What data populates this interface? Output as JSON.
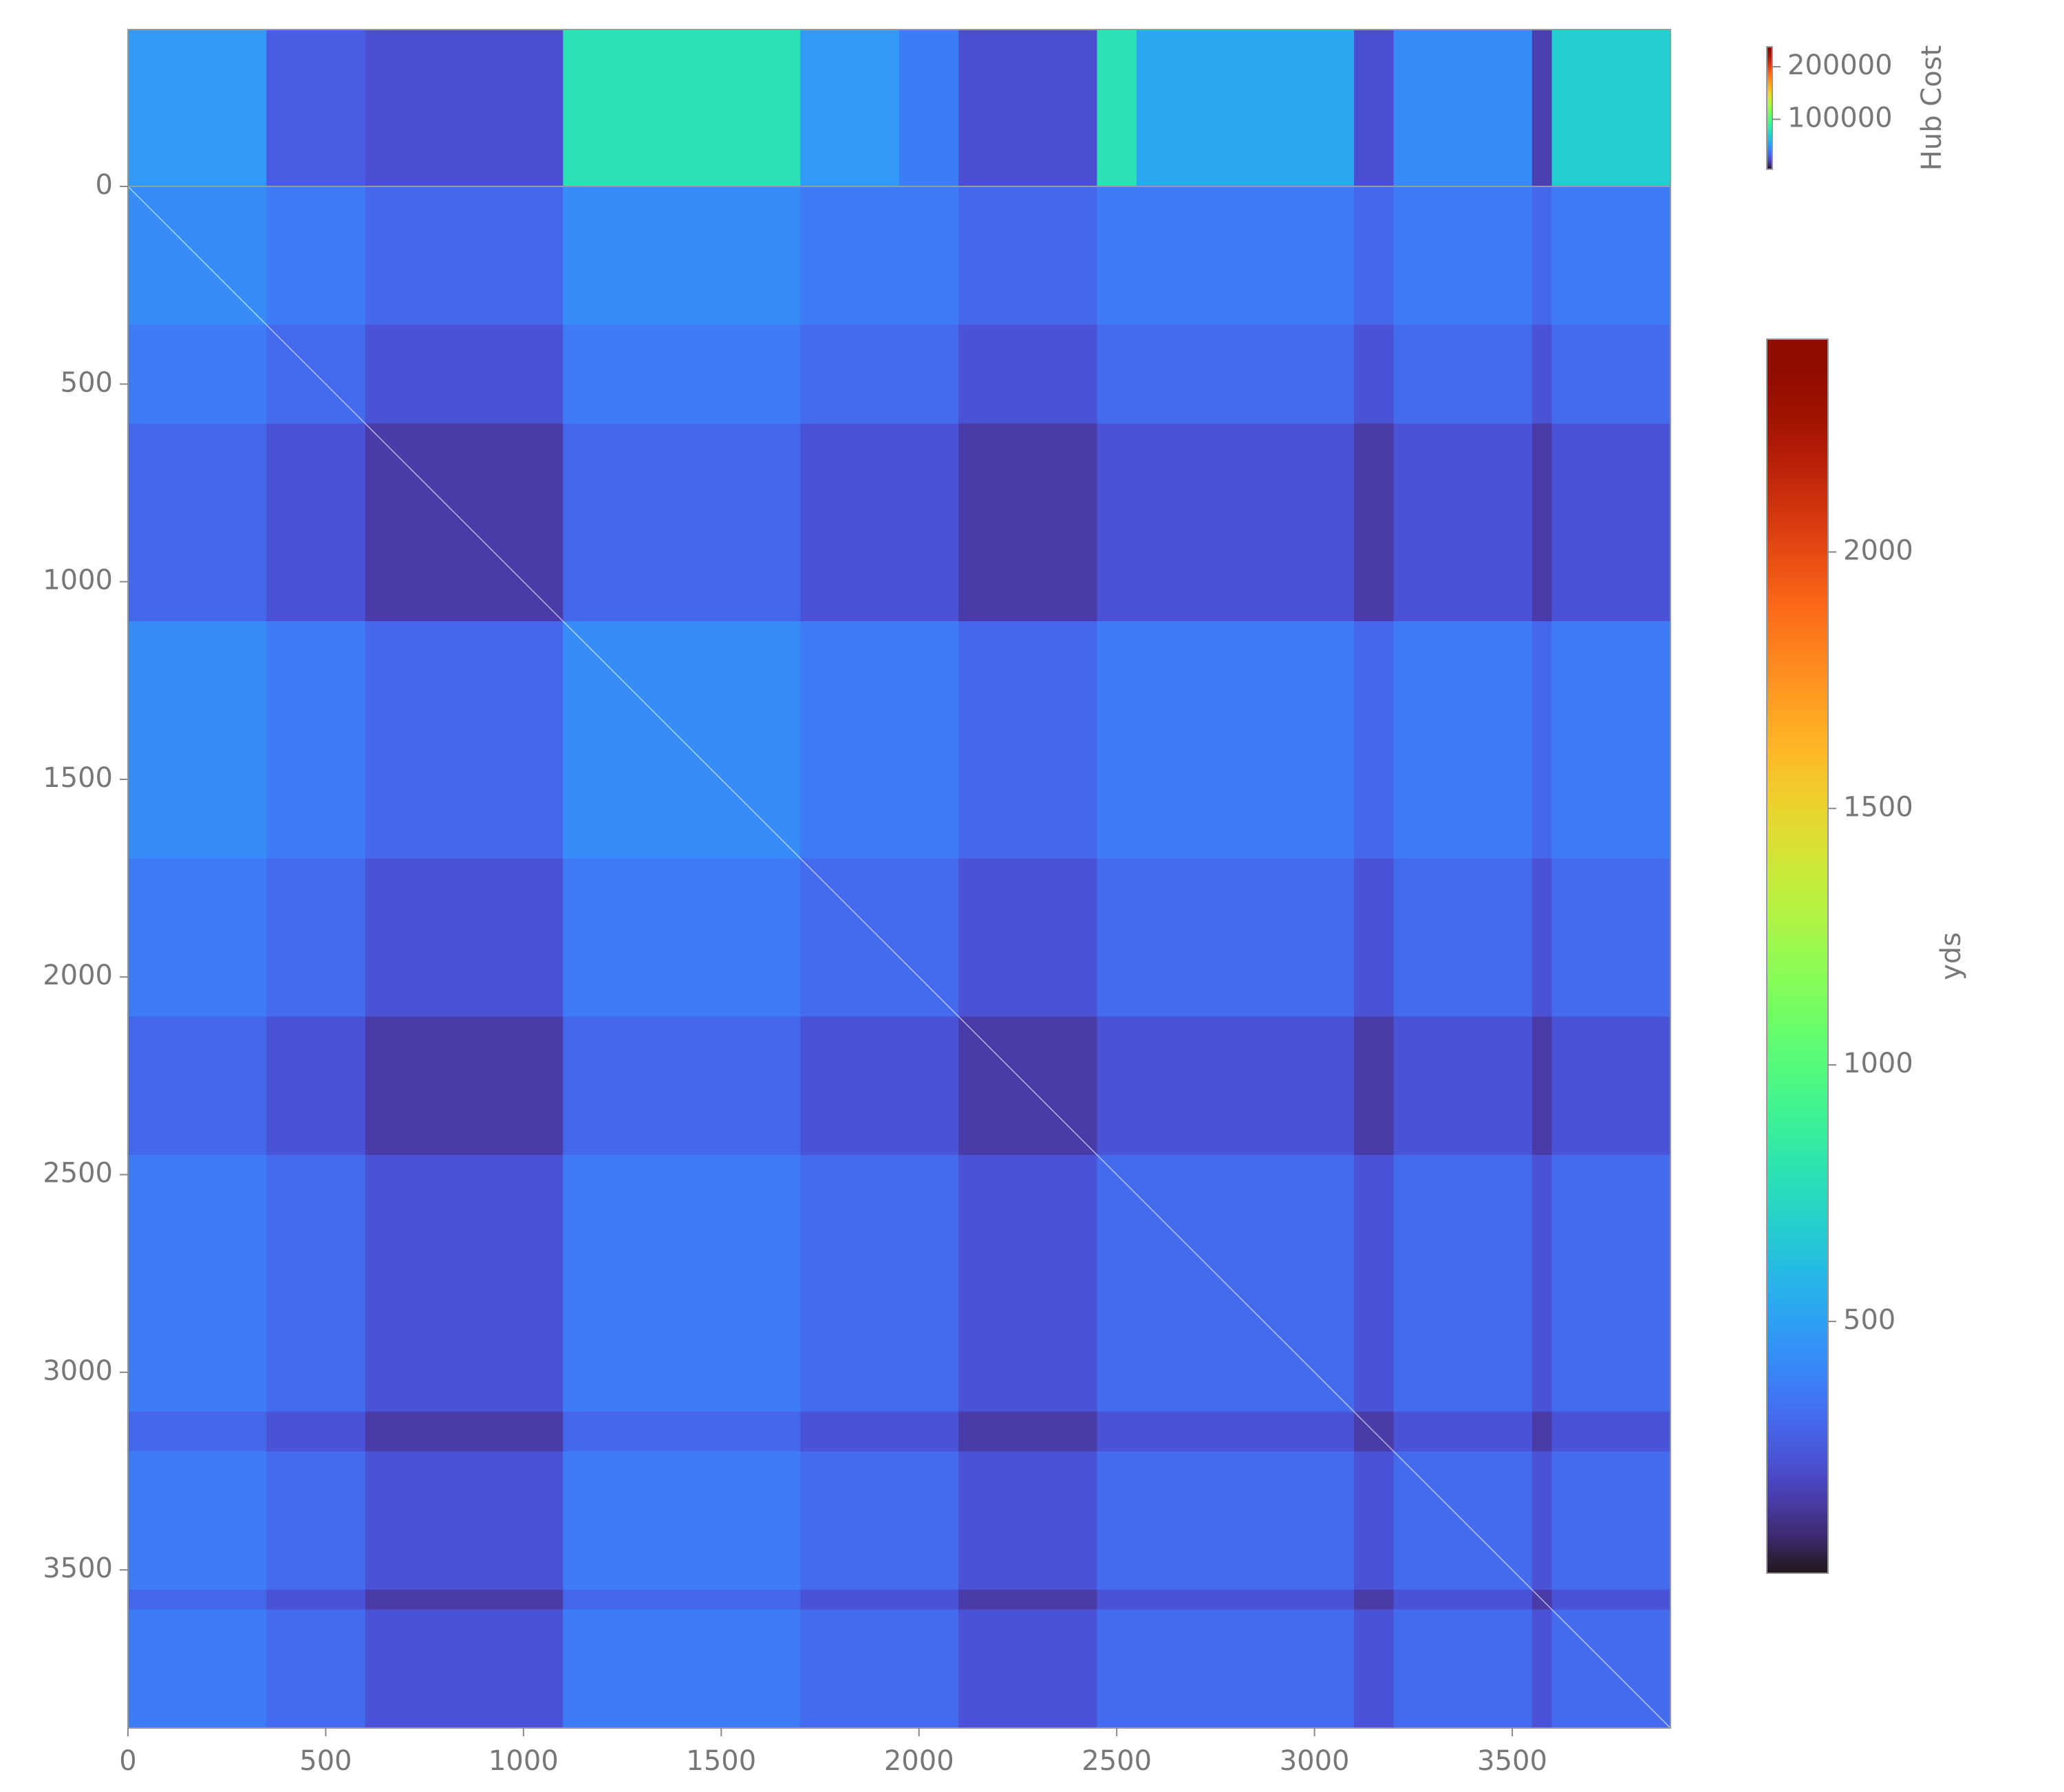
{
  "chart_data": {
    "type": "heatmap",
    "colormap": "turbo",
    "x_edges": [
      0,
      350,
      600,
      1100,
      1700,
      1950,
      2100,
      2450,
      2550,
      3100,
      3200,
      3550,
      3600,
      3900
    ],
    "y_edges": [
      0,
      350,
      600,
      1100,
      1700,
      1950,
      2100,
      2450,
      2550,
      3100,
      3200,
      3550,
      3600,
      3900
    ],
    "values": [
      [
        430,
        370,
        300,
        430,
        370,
        370,
        300,
        370,
        370,
        300,
        370,
        300,
        370
      ],
      [
        370,
        310,
        230,
        370,
        310,
        310,
        230,
        310,
        310,
        230,
        310,
        230,
        310
      ],
      [
        300,
        230,
        150,
        300,
        230,
        230,
        150,
        230,
        230,
        150,
        230,
        150,
        230
      ],
      [
        430,
        370,
        300,
        430,
        370,
        370,
        300,
        370,
        370,
        300,
        370,
        300,
        370
      ],
      [
        370,
        310,
        230,
        370,
        310,
        310,
        230,
        310,
        310,
        230,
        310,
        230,
        310
      ],
      [
        370,
        310,
        230,
        370,
        310,
        310,
        230,
        310,
        310,
        230,
        310,
        230,
        310
      ],
      [
        300,
        230,
        150,
        300,
        230,
        230,
        150,
        230,
        230,
        150,
        230,
        150,
        230
      ],
      [
        370,
        310,
        230,
        370,
        310,
        310,
        230,
        310,
        310,
        230,
        310,
        230,
        310
      ],
      [
        370,
        310,
        230,
        370,
        310,
        310,
        230,
        310,
        310,
        230,
        310,
        230,
        310
      ],
      [
        300,
        230,
        150,
        300,
        230,
        230,
        150,
        230,
        230,
        150,
        230,
        150,
        230
      ],
      [
        370,
        310,
        230,
        370,
        310,
        310,
        230,
        310,
        310,
        230,
        310,
        230,
        310
      ],
      [
        300,
        230,
        150,
        300,
        230,
        230,
        150,
        230,
        230,
        150,
        230,
        150,
        230
      ],
      [
        370,
        310,
        230,
        370,
        310,
        310,
        230,
        310,
        310,
        230,
        310,
        230,
        310
      ]
    ],
    "xlim": [
      0,
      3900
    ],
    "ylim": [
      3900,
      0
    ],
    "xticks": [
      0,
      500,
      1000,
      1500,
      2000,
      2500,
      3000,
      3500
    ],
    "yticks": [
      0,
      500,
      1000,
      1500,
      2000,
      2500,
      3000,
      3500
    ],
    "clim": [
      9,
      2415
    ],
    "cticks": [
      500,
      1000,
      1500,
      2000
    ],
    "colorbar_label": "yds",
    "hub_cost": {
      "label": "Hub Cost",
      "values": [
        50000,
        30000,
        25000,
        80000,
        50000,
        40000,
        25000,
        80000,
        55000,
        25000,
        45000,
        20000,
        70000
      ],
      "clim": [
        5000,
        238000
      ],
      "ticks": [
        100000,
        200000
      ]
    }
  }
}
